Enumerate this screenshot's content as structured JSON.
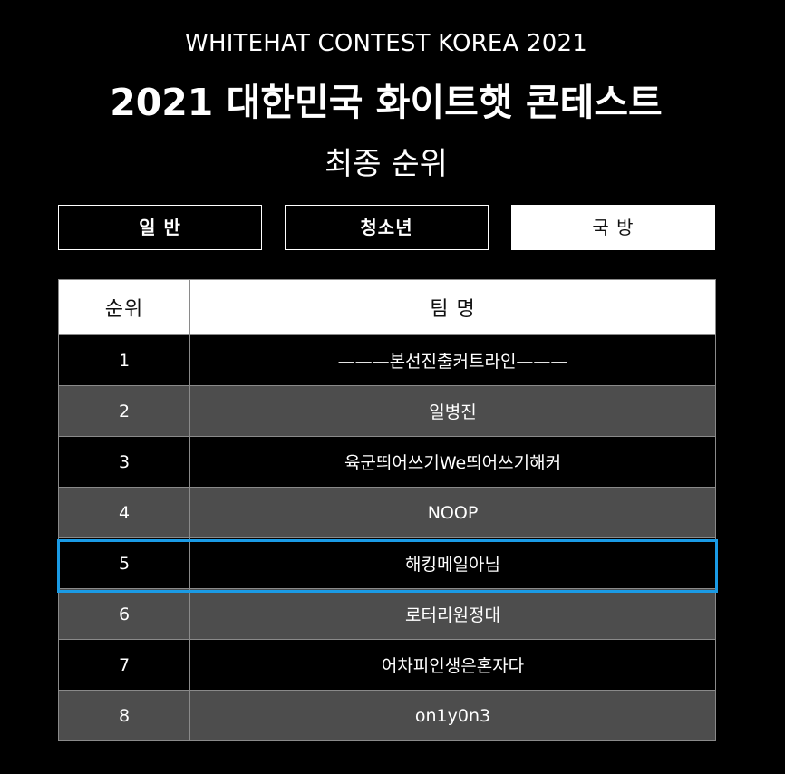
{
  "header": {
    "subtitle": "WHITEHAT CONTEST KOREA 2021",
    "title": "2021 대한민국 화이트햇 콘테스트",
    "section_title": "최종 순위"
  },
  "tabs": [
    {
      "label": "일 반",
      "active": false
    },
    {
      "label": "청소년",
      "active": false
    },
    {
      "label": "국 방",
      "active": true
    }
  ],
  "table": {
    "headers": {
      "rank": "순위",
      "team": "팀 명"
    },
    "rows": [
      {
        "rank": "1",
        "team": "———본선진출커트라인———"
      },
      {
        "rank": "2",
        "team": "일병진"
      },
      {
        "rank": "3",
        "team": "육군띄어쓰기We띄어쓰기해커"
      },
      {
        "rank": "4",
        "team": "NOOP"
      },
      {
        "rank": "5",
        "team": "해킹메일아님"
      },
      {
        "rank": "6",
        "team": "로터리원정대"
      },
      {
        "rank": "7",
        "team": "어차피인생은혼자다"
      },
      {
        "rank": "8",
        "team": "on1y0n3"
      }
    ],
    "highlighted_rank": "5"
  },
  "colors": {
    "background": "#000000",
    "active_tab": "#ffffff",
    "row_dark": "#000000",
    "row_gray": "#4d4d4d",
    "highlight": "#1a9be6"
  }
}
